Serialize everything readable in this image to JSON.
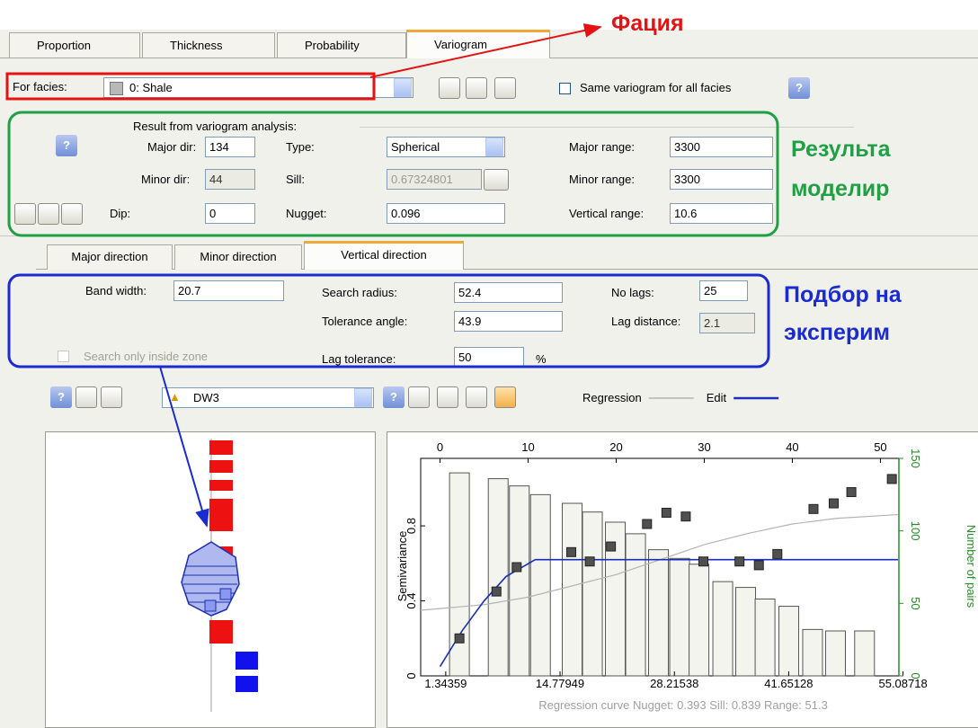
{
  "tabs": {
    "items": [
      "Proportion",
      "Thickness",
      "Probability",
      "Variogram"
    ]
  },
  "facies": {
    "label": "For facies:",
    "value": "0: Shale",
    "same_label": "Same variogram for all facies"
  },
  "result": {
    "title": "Result from variogram analysis:",
    "major_dir": {
      "label": "Major dir:",
      "value": "134"
    },
    "minor_dir": {
      "label": "Minor dir:",
      "value": "44"
    },
    "dip": {
      "label": "Dip:",
      "value": "0"
    },
    "type": {
      "label": "Type:",
      "value": "Spherical"
    },
    "sill": {
      "label": "Sill:",
      "value": "0.67324801"
    },
    "nugget": {
      "label": "Nugget:",
      "value": "0.096"
    },
    "major_range": {
      "label": "Major range:",
      "value": "3300"
    },
    "minor_range": {
      "label": "Minor range:",
      "value": "3300"
    },
    "vertical_range": {
      "label": "Vertical range:",
      "value": "10.6"
    }
  },
  "subtabs": {
    "items": [
      "Major direction",
      "Minor direction",
      "Vertical direction"
    ]
  },
  "search": {
    "band_width": {
      "label": "Band width:",
      "value": "20.7"
    },
    "search_radius": {
      "label": "Search radius:",
      "value": "52.4"
    },
    "no_lags": {
      "label": "No lags:",
      "value": "25"
    },
    "tolerance_angle": {
      "label": "Tolerance angle:",
      "value": "43.9"
    },
    "lag_distance": {
      "label": "Lag distance:",
      "value": "2.1"
    },
    "lag_tolerance": {
      "label": "Lag tolerance:",
      "value": "50",
      "unit": "%"
    },
    "inside_zone": "Search only inside zone"
  },
  "toolbar": {
    "well": "DW3"
  },
  "annotations": {
    "facies": "Фация",
    "result": [
      "Результа",
      "моделир"
    ],
    "search": [
      "Подбор на",
      "эксперим"
    ]
  },
  "chart_data": {
    "type": "combo",
    "y_label": "Semivariance",
    "y2_label": "Number of pairs",
    "caption": "Regression curve   Nugget: 0.393   Sill: 0.839   Range: 51.3",
    "xlim": [
      -2.2,
      52.1
    ],
    "xticks": [
      0,
      10,
      20,
      30,
      40,
      50
    ],
    "x2lim": [
      -1.6,
      54.6
    ],
    "x2ticks": [
      1.34359,
      14.77949,
      28.21538,
      41.65128,
      55.08718
    ],
    "ylim": [
      0,
      1.16
    ],
    "yticks": [
      0,
      0.4,
      0.8
    ],
    "y2lim": [
      0,
      150
    ],
    "y2ticks": [
      0,
      50,
      100,
      150
    ],
    "bars": {
      "axis": "y2",
      "color": "#f4f4ee",
      "x": [
        2.2,
        6.6,
        9.0,
        11.4,
        15.0,
        17.3,
        19.9,
        22.2,
        24.8,
        27.2,
        29.4,
        32.1,
        34.7,
        36.9,
        39.6,
        42.3,
        44.9,
        48.2
      ],
      "values": [
        140,
        136,
        131,
        125,
        119,
        113,
        106,
        98,
        87,
        81,
        77,
        65,
        61,
        53,
        48,
        32,
        31,
        31
      ]
    },
    "points": {
      "color": "#505050",
      "x": [
        2.2,
        6.4,
        8.7,
        14.9,
        17.0,
        19.4,
        23.5,
        25.7,
        27.9,
        29.9,
        34.0,
        36.2,
        38.3,
        42.4,
        44.7,
        46.7,
        51.3
      ],
      "values": [
        0.2,
        0.45,
        0.58,
        0.66,
        0.61,
        0.69,
        0.81,
        0.87,
        0.85,
        0.61,
        0.61,
        0.59,
        0.65,
        0.89,
        0.92,
        0.98,
        1.05
      ]
    },
    "series": [
      {
        "name": "Regression",
        "color": "#b4b4b4",
        "x": [
          -2.2,
          5,
          10,
          15,
          20,
          25,
          30,
          35,
          40,
          45,
          52
        ],
        "values": [
          0.35,
          0.38,
          0.42,
          0.48,
          0.54,
          0.62,
          0.7,
          0.76,
          0.81,
          0.84,
          0.86
        ]
      },
      {
        "name": "Edit",
        "color": "#1a2fb5",
        "x": [
          0,
          2.5,
          5,
          7.5,
          10.8,
          52
        ],
        "values": [
          0.05,
          0.24,
          0.4,
          0.53,
          0.62,
          0.62
        ]
      }
    ]
  }
}
